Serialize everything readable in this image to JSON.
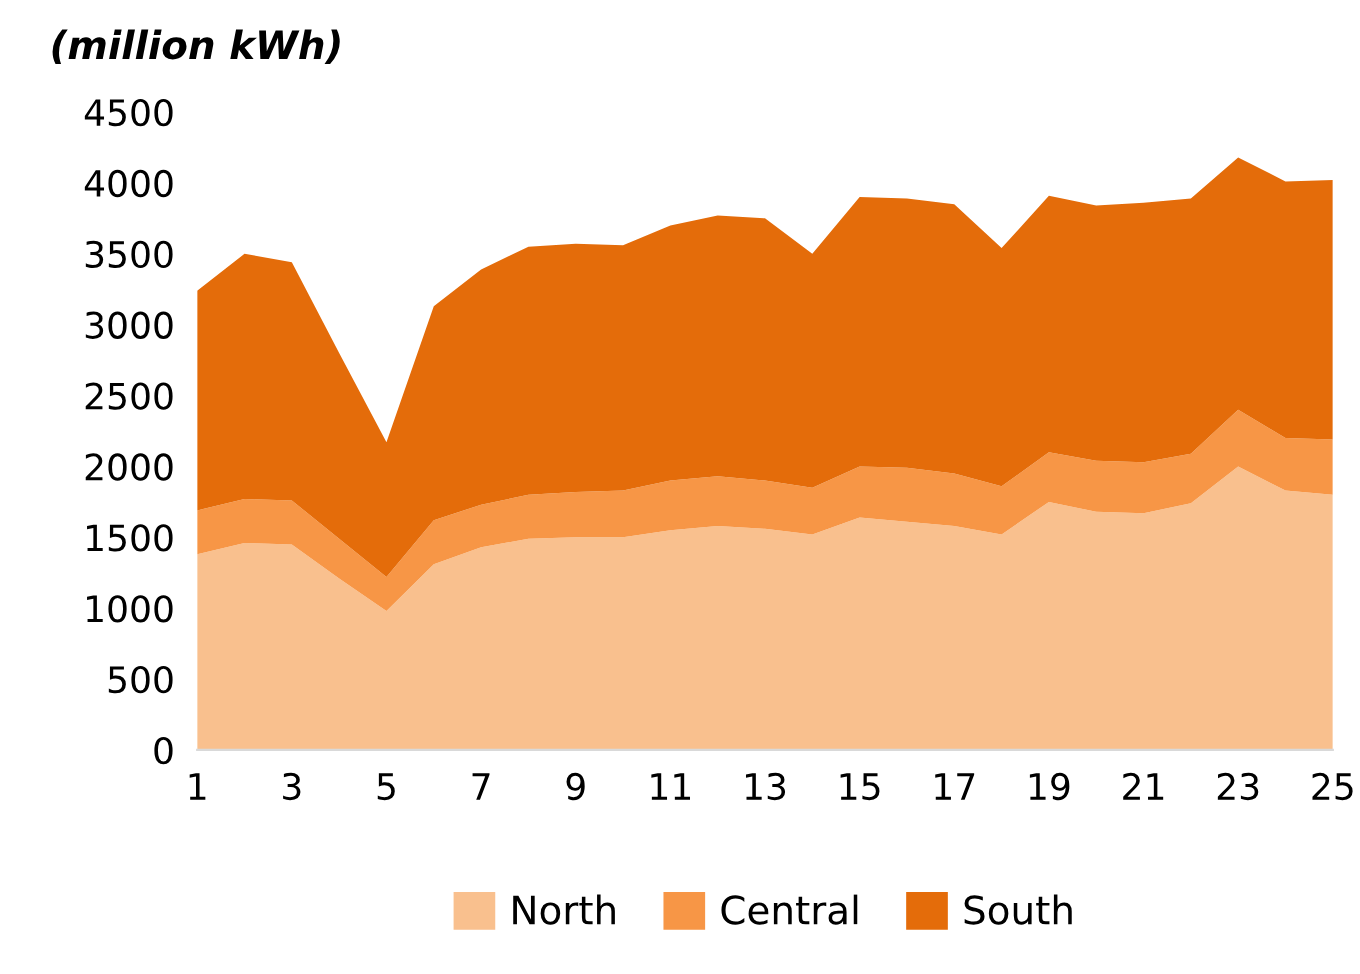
{
  "chart_data": {
    "type": "area",
    "stacked": true,
    "ylabel": "(million kWh)",
    "x": [
      1,
      2,
      3,
      4,
      5,
      6,
      7,
      8,
      9,
      10,
      11,
      12,
      13,
      14,
      15,
      16,
      17,
      18,
      19,
      20,
      21,
      22,
      23,
      24,
      25
    ],
    "series": [
      {
        "name": "North",
        "color": "#f9c08e",
        "values": [
          1380,
          1460,
          1450,
          1210,
          980,
          1310,
          1430,
          1490,
          1500,
          1500,
          1550,
          1580,
          1560,
          1520,
          1640,
          1610,
          1580,
          1520,
          1750,
          1680,
          1670,
          1740,
          2000,
          1830,
          1800
        ]
      },
      {
        "name": "Central",
        "color": "#f79646",
        "values": [
          310,
          310,
          310,
          280,
          240,
          310,
          300,
          310,
          320,
          330,
          350,
          350,
          340,
          330,
          360,
          380,
          370,
          340,
          350,
          360,
          360,
          350,
          400,
          370,
          390
        ]
      },
      {
        "name": "South",
        "color": "#e46c0a",
        "values": [
          1550,
          1730,
          1680,
          1310,
          950,
          1510,
          1660,
          1750,
          1750,
          1730,
          1800,
          1840,
          1850,
          1650,
          1900,
          1900,
          1900,
          1680,
          1810,
          1800,
          1830,
          1800,
          1780,
          1810,
          1830
        ]
      }
    ],
    "xlim": [
      1,
      25
    ],
    "xticks": [
      1,
      3,
      5,
      7,
      9,
      11,
      13,
      15,
      17,
      19,
      21,
      23,
      25
    ],
    "ylim": [
      0,
      4500
    ],
    "yticks": [
      0,
      500,
      1000,
      1500,
      2000,
      2500,
      3000,
      3500,
      4000,
      4500
    ],
    "grid": false,
    "legend": "bottom"
  }
}
